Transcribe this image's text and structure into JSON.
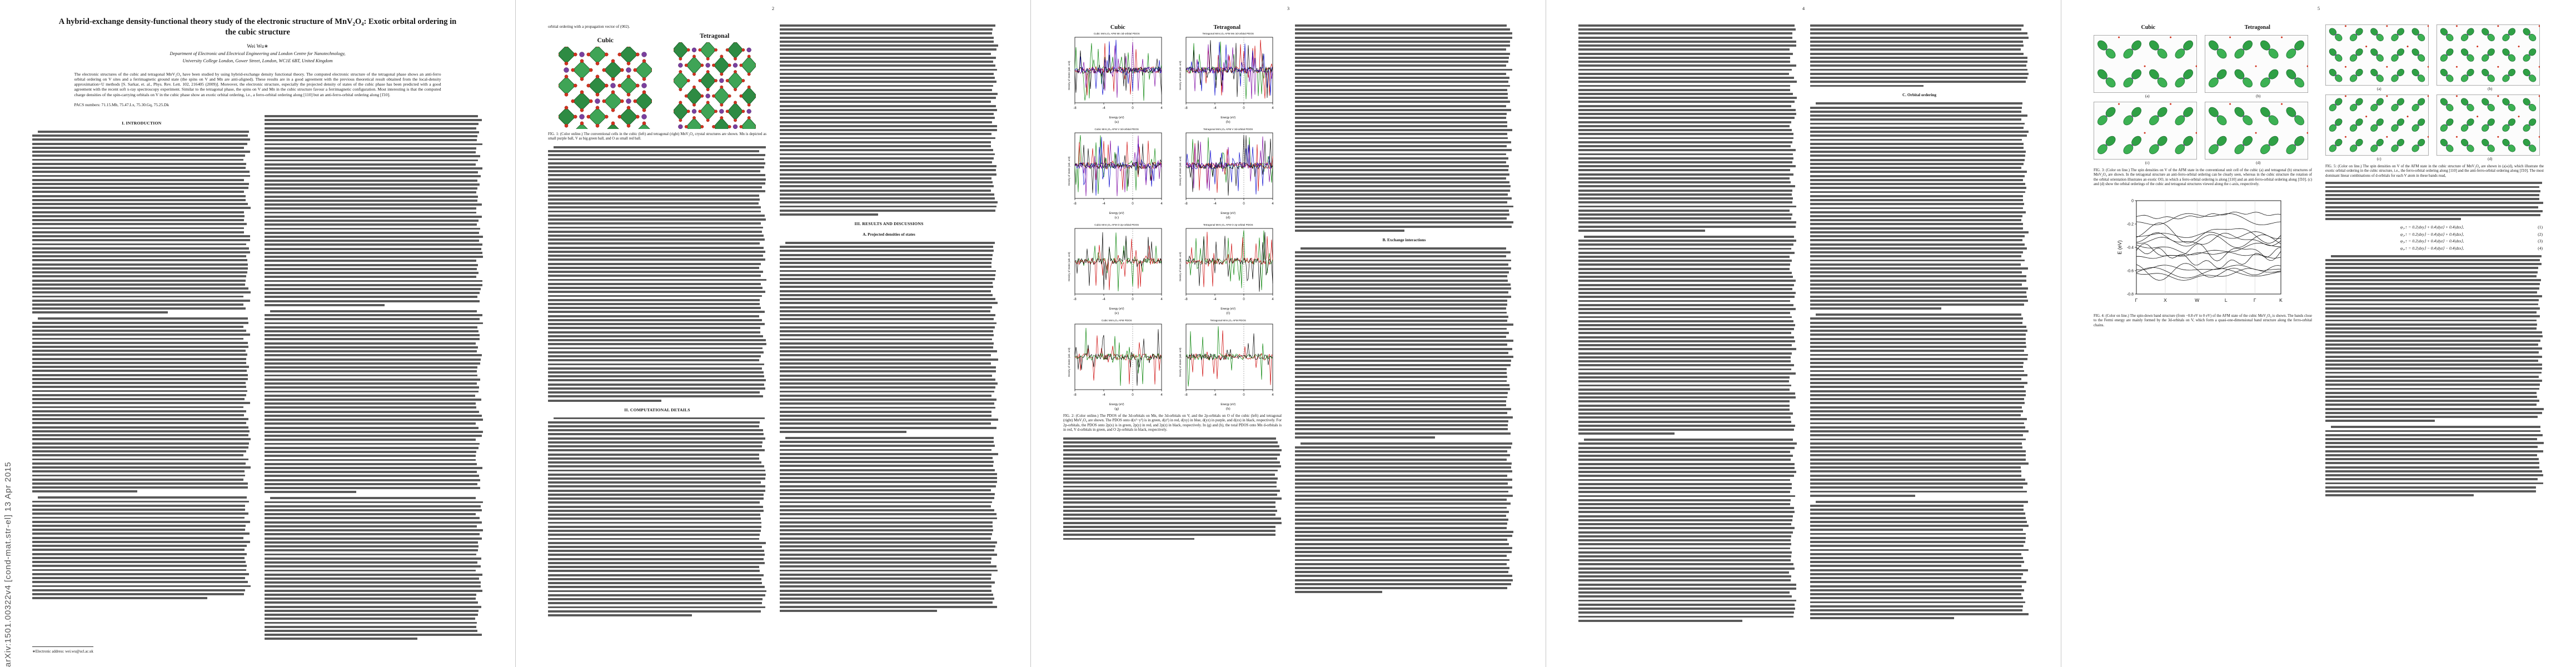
{
  "arxiv_sidebar": "arXiv:1501.00322v4  [cond-mat.str-el]  13 Apr 2015",
  "page1": {
    "title": "A hybrid-exchange density-functional theory study of the electronic structure of MnV₂O₄: Exotic orbital ordering in the cubic structure",
    "author": "Wei Wu∗",
    "affiliation1": "Department of Electronic and Electrical Engineering and London Centre for Nanotechnology,",
    "affiliation2": "University College London, Gower Street, London, WC1E 6BT, United Kingdom",
    "abstract": "The electronic structures of the cubic and tetragonal MnV₂O₄ have been studied by using hybrid-exchange density functional theory. The computed electronic structure of the tetragonal phase shows an anti-ferro orbital ordering on V sites and a ferrimagnetic ground state (the spins on V and Mn are anti-aligned). These results are in a good agreement with the previous theoretical result obtained from the local-density approximation+U methods [S. Sarkar, et. al., Phys. Rev. Lett. 102, 216405 (2009)]. Moreover, the electronic structure, especially the projected density of states of the cubic phase has been predicted with a good agreement with the recent soft x-ray spectroscopy experiment. Similar to the tetragonal phase, the spins on V and Mn in the cubic structure favour a ferrimagnetic configuration. Most interesting is that the computed charge densities of the spin-carrying orbitals on V in the cubic phase show an exotic orbital ordering, i.e., a ferro-orbital ordering along [110] but an anti-ferro-orbital ordering along [1̄10].",
    "pacs": "PACS numbers: 71.15.Mb, 75.47.Lx, 75.30.Gq, 75.25.Dk",
    "section_introduction": "I.   INTRODUCTION",
    "footnote": "∗Electronic address: wei.wu@ucl.ac.uk"
  },
  "page2": {
    "number": "2",
    "lead": "orbital ordering with a propagation vector of (002).",
    "fig1": {
      "label_cubic": "Cubic",
      "label_tetragonal": "Tetragonal",
      "caption": "FIG. 1: (Color online.) The conventional cells in the cubic (left) and tetragonal (right) MnV₂O₄ crystal structures are shown. Mn is depicted as small purple ball, V as big green ball, and O as small red ball."
    },
    "section_computational": "II.   COMPUTATIONAL DETAILS",
    "section_results": "III.   RESULTS AND DISCUSSIONS",
    "subsection_pdos": "A.   Projected densities of states"
  },
  "page3": {
    "number": "3",
    "fig2": {
      "col_headers": [
        "Cubic",
        "Tetragonal"
      ],
      "xlabel": "Energy (eV)",
      "ylabel": "Density of states (arb. unit)",
      "xticks": [
        "-8",
        "-4",
        "0",
        "4"
      ],
      "panels": [
        {
          "tag": "(a)",
          "title": "Cubic MnV₂O₄ AFM Mn 3d-orbital PDOS",
          "curves": [
            "#008000",
            "#cc0000",
            "#0000cc",
            "#7a00a0",
            "#000000"
          ]
        },
        {
          "tag": "(b)",
          "title": "Tetragonal MnV₂O₄ AFM Mn 3d-orbital PDOS",
          "curves": [
            "#008000",
            "#cc0000",
            "#0000cc",
            "#7a00a0",
            "#000000"
          ]
        },
        {
          "tag": "(c)",
          "title": "Cubic MnV₂O₄ AFM V 3d-orbital PDOS",
          "curves": [
            "#008000",
            "#cc0000",
            "#0000cc",
            "#7a00a0",
            "#000000"
          ]
        },
        {
          "tag": "(d)",
          "title": "Tetragonal MnV₂O₄ AFM V 3d-orbital PDOS",
          "curves": [
            "#008000",
            "#cc0000",
            "#0000cc",
            "#7a00a0",
            "#000000"
          ]
        },
        {
          "tag": "(e)",
          "title": "Cubic MnV₂O₄ AFM O 2p-orbital PDOS",
          "curves": [
            "#008000",
            "#cc0000",
            "#000000"
          ]
        },
        {
          "tag": "(f)",
          "title": "Tetragonal MnV₂O₄ AFM O 2p-orbital PDOS",
          "curves": [
            "#008000",
            "#cc0000",
            "#000000"
          ]
        },
        {
          "tag": "(g)",
          "title": "Cubic MnV₂O₄ AFM PDOS",
          "curves": [
            "#cc0000",
            "#008000",
            "#000000"
          ]
        },
        {
          "tag": "(h)",
          "title": "Tetragonal MnV₂O₄ AFM PDOS",
          "curves": [
            "#cc0000",
            "#008000",
            "#000000"
          ]
        }
      ],
      "caption": "FIG. 2: (Color online.) The PDOS of the 3d-orbitals on Mn, the 3d-orbitals on V, and the 2p-orbitals on O of the cubic (left) and tetragonal (right) MnV₂O₄ are shown. The PDOS onto d(x²−y²) is in green, d(z²) in red, d(xy) in blue, d(yz) in purple, and d(zx) in black, respectively. For 2p-orbitals, the PDOS onto 2p(x) is in green, 2p(y) in red, and 2p(z) in black, respectively. In (g) and (h), the total PDOS onto Mn d-orbitals is in red, V d-orbitals in green, and O 2p-orbitals in black, respectively."
    },
    "subsection_exchange": "B.   Exchange interactions"
  },
  "page4": {
    "number": "4",
    "subsection_orbital": "C.   Orbital ordering"
  },
  "page5": {
    "number": "5",
    "fig3": {
      "label_cubic": "Cubic",
      "label_tetragonal": "Tetragonal",
      "tags": [
        "(a)",
        "(b)",
        "(c)",
        "(d)"
      ],
      "caption": "FIG. 3: (Color on line.) The spin densities on V of the AFM state in the conventional unit cell of the cubic (a) and tetragonal (b) structures of MnV₂O₄ are shown. In the tetragonal structure an anti-ferro-orbital ordering can be clearly seen, whereas in the cubic structure the rotation of the orbital orientation illustrates an exotic OO, in which a ferro-orbital ordering is along [110] and an anti-ferro-orbital ordering along [1̄10]. (c) and (d) show the orbital orderings of the cubic and tetragonal structures viewed along the c-axis, respectively."
    },
    "fig4": {
      "ylabel": "E (eV)",
      "yticks": [
        "0",
        "-0.2",
        "-0.4",
        "-0.6",
        "-0.8"
      ],
      "xticks": [
        "Γ",
        "X",
        "W",
        "L",
        "Γ",
        "K"
      ],
      "caption": "FIG. 4: (Color on line.) The spin-down band structure (from −0.8 eV to 0 eV) of the AFM state of the cubic MnV₂O₄ is shown. The bands close to the Fermi energy are mainly formed by the 3d-orbitals on V, which form a quasi-one-dimensional band structure along the ferro-orbital chains."
    },
    "fig5": {
      "tags": [
        "(a)",
        "(b)",
        "(c)",
        "(d)"
      ],
      "caption": "FIG. 5: (Color on line.) The spin densities on V of the AFM state in the cubic structure of MnV₂O₄ are shown in (a)-(d), which illustrate the exotic orbital ordering in the cubic structure, i.e., the ferro-orbital ordering along [110] and the anti-ferro-orbital ordering along [1̄10]. The most dominant linear combinations of d-orbitals for each V atom in these bands read,"
    },
    "equations": [
      {
        "body": "φ₁,↑ = 0.2|dxy⟩ + 0.4|dyz⟩ + 0.4|dzx⟩,",
        "num": "(1)"
      },
      {
        "body": "φ₂,↑ = 0.2|dxy⟩ − 0.4|dyz⟩ + 0.4|dzx⟩,",
        "num": "(2)"
      },
      {
        "body": "φ₃,↑ = 0.2|dxy⟩ + 0.4|dyz⟩ − 0.4|dzx⟩,",
        "num": "(3)"
      },
      {
        "body": "φ₄,↑ = 0.2|dxy⟩ − 0.4|dyz⟩ − 0.4|dzx⟩,",
        "num": "(4)"
      }
    ]
  },
  "colors": {
    "crystal_green": "#2f8f3f",
    "oxygen_red": "#d2321e",
    "mn_purple": "#7a3f9e",
    "curve_green": "#008000",
    "curve_red": "#cc0000",
    "curve_blue": "#0000cc",
    "curve_purple": "#7a00a0",
    "curve_black": "#000000"
  }
}
